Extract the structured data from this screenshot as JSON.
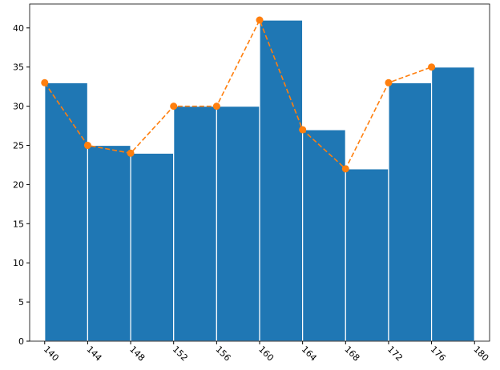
{
  "chart_data": {
    "type": "histogram",
    "bins": [
      140,
      144,
      148,
      152,
      156,
      160,
      164,
      168,
      172,
      176,
      180
    ],
    "values": [
      33,
      25,
      24,
      30,
      30,
      41,
      27,
      22,
      33,
      35
    ],
    "color": "#1f77b4",
    "edgecolor": "#ffffff",
    "line": {
      "x": [
        140,
        144,
        148,
        152,
        156,
        160,
        164,
        168,
        172,
        176
      ],
      "values": [
        33,
        25,
        24,
        30,
        30,
        41,
        27,
        22,
        33,
        35
      ],
      "color": "#ff7f0e",
      "dashed": true,
      "markers": true
    },
    "xlim": [
      138.6,
      181.4
    ],
    "ylim": [
      0,
      43.05
    ],
    "xticks": [
      140,
      144,
      148,
      152,
      156,
      160,
      164,
      168,
      172,
      176,
      180
    ],
    "yticks": [
      0,
      5,
      10,
      15,
      20,
      25,
      30,
      35,
      40
    ]
  }
}
